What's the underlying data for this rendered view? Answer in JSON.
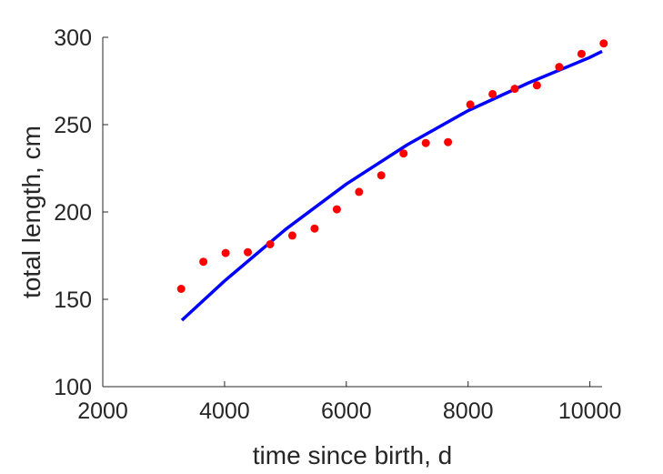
{
  "chart_data": {
    "type": "scatter",
    "title": "",
    "xlabel": "time since birth, d",
    "ylabel": "total length, cm",
    "xlim": [
      2000,
      10200
    ],
    "ylim": [
      100,
      300
    ],
    "xticks": [
      2000,
      4000,
      6000,
      8000,
      10000
    ],
    "yticks": [
      100,
      150,
      200,
      250,
      300
    ],
    "grid": false,
    "legend": "none",
    "series": [
      {
        "kind": "points",
        "color": "#ff0000",
        "x": [
          3287,
          3652,
          4018,
          4383,
          4748,
          5113,
          5479,
          5844,
          6209,
          6574,
          6940,
          7305,
          7670,
          8035,
          8401,
          8766,
          9131,
          9496,
          9862,
          10227
        ],
        "y": [
          156,
          171.5,
          176.5,
          177,
          181.5,
          186.5,
          190.5,
          201.5,
          211.5,
          221,
          233.5,
          239.5,
          240,
          261.5,
          267.5,
          270.5,
          272.5,
          283,
          290.5,
          296.5
        ]
      },
      {
        "kind": "line",
        "color": "#0000ff",
        "x": [
          3300,
          4000,
          5000,
          6000,
          7000,
          8000,
          9000,
          10000,
          10200
        ],
        "y": [
          138,
          160.5,
          190,
          216,
          238.5,
          258,
          274,
          288.5,
          292
        ]
      }
    ]
  }
}
